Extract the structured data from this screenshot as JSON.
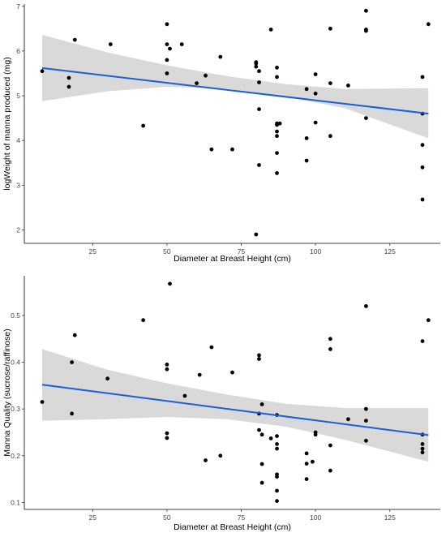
{
  "chart_data": [
    {
      "type": "scatter",
      "title": "",
      "xlabel": "Diameter at Breast Height (cm)",
      "ylabel": "logWeight of manna produced (mg)",
      "xlim": [
        2,
        142
      ],
      "ylim": [
        1.7,
        7.05
      ],
      "x_ticks": [
        25,
        50,
        75,
        100,
        125
      ],
      "y_ticks": [
        2,
        3,
        4,
        5,
        6,
        7
      ],
      "grid": false,
      "colors": {
        "points": "#000000",
        "fit": "#1a5fd6",
        "band": "#d9d9d9"
      },
      "points": [
        {
          "x": 8,
          "y": 5.55
        },
        {
          "x": 17,
          "y": 5.4
        },
        {
          "x": 17,
          "y": 5.2
        },
        {
          "x": 19,
          "y": 6.25
        },
        {
          "x": 31,
          "y": 6.15
        },
        {
          "x": 42,
          "y": 4.33
        },
        {
          "x": 50,
          "y": 6.6
        },
        {
          "x": 50,
          "y": 6.15
        },
        {
          "x": 50,
          "y": 5.8
        },
        {
          "x": 50,
          "y": 5.5
        },
        {
          "x": 51,
          "y": 6.05
        },
        {
          "x": 55,
          "y": 6.15
        },
        {
          "x": 60,
          "y": 5.28
        },
        {
          "x": 63,
          "y": 5.45
        },
        {
          "x": 65,
          "y": 3.8
        },
        {
          "x": 68,
          "y": 5.87
        },
        {
          "x": 72,
          "y": 3.8
        },
        {
          "x": 80,
          "y": 5.75
        },
        {
          "x": 80,
          "y": 5.72
        },
        {
          "x": 80,
          "y": 5.65
        },
        {
          "x": 80,
          "y": 1.9
        },
        {
          "x": 81,
          "y": 5.55
        },
        {
          "x": 81,
          "y": 5.3
        },
        {
          "x": 81,
          "y": 4.7
        },
        {
          "x": 81,
          "y": 3.45
        },
        {
          "x": 85,
          "y": 6.48
        },
        {
          "x": 87,
          "y": 5.63
        },
        {
          "x": 87,
          "y": 5.42
        },
        {
          "x": 87,
          "y": 4.38
        },
        {
          "x": 87,
          "y": 4.35
        },
        {
          "x": 87,
          "y": 4.2
        },
        {
          "x": 87,
          "y": 4.1
        },
        {
          "x": 87,
          "y": 3.72
        },
        {
          "x": 87,
          "y": 3.27
        },
        {
          "x": 88,
          "y": 4.38
        },
        {
          "x": 97,
          "y": 5.15
        },
        {
          "x": 97,
          "y": 4.05
        },
        {
          "x": 97,
          "y": 3.55
        },
        {
          "x": 100,
          "y": 5.48
        },
        {
          "x": 100,
          "y": 5.05
        },
        {
          "x": 100,
          "y": 4.4
        },
        {
          "x": 105,
          "y": 6.5
        },
        {
          "x": 105,
          "y": 5.28
        },
        {
          "x": 105,
          "y": 4.1
        },
        {
          "x": 111,
          "y": 5.23
        },
        {
          "x": 117,
          "y": 6.9
        },
        {
          "x": 117,
          "y": 6.48
        },
        {
          "x": 117,
          "y": 6.45
        },
        {
          "x": 117,
          "y": 4.5
        },
        {
          "x": 136,
          "y": 5.42
        },
        {
          "x": 136,
          "y": 4.6
        },
        {
          "x": 136,
          "y": 3.9
        },
        {
          "x": 136,
          "y": 3.4
        },
        {
          "x": 136,
          "y": 2.68
        },
        {
          "x": 138,
          "y": 6.6
        }
      ],
      "fit": {
        "x": [
          8,
          138
        ],
        "y": [
          5.62,
          4.6
        ]
      },
      "ci_band": {
        "x": [
          8,
          30,
          50,
          70,
          90,
          110,
          138
        ],
        "upper": [
          6.36,
          5.97,
          5.68,
          5.44,
          5.26,
          5.15,
          5.17
        ],
        "lower": [
          4.88,
          5.1,
          5.2,
          5.16,
          4.98,
          4.72,
          4.05
        ]
      }
    },
    {
      "type": "scatter",
      "title": "",
      "xlabel": "Diameter at Breast Height (cm)",
      "ylabel": "Manna Quality (sucrose/raffinose)",
      "xlim": [
        2,
        142
      ],
      "ylim": [
        0.085,
        0.585
      ],
      "x_ticks": [
        25,
        50,
        75,
        100,
        125
      ],
      "y_ticks": [
        0.1,
        0.2,
        0.3,
        0.4,
        0.5
      ],
      "grid": false,
      "colors": {
        "points": "#000000",
        "fit": "#1a5fd6",
        "band": "#d9d9d9"
      },
      "points": [
        {
          "x": 8,
          "y": 0.315
        },
        {
          "x": 18,
          "y": 0.4
        },
        {
          "x": 18,
          "y": 0.29
        },
        {
          "x": 19,
          "y": 0.458
        },
        {
          "x": 30,
          "y": 0.365
        },
        {
          "x": 42,
          "y": 0.49
        },
        {
          "x": 50,
          "y": 0.395
        },
        {
          "x": 50,
          "y": 0.385
        },
        {
          "x": 50,
          "y": 0.248
        },
        {
          "x": 50,
          "y": 0.238
        },
        {
          "x": 51,
          "y": 0.568
        },
        {
          "x": 56,
          "y": 0.328
        },
        {
          "x": 61,
          "y": 0.373
        },
        {
          "x": 63,
          "y": 0.19
        },
        {
          "x": 65,
          "y": 0.432
        },
        {
          "x": 68,
          "y": 0.2
        },
        {
          "x": 72,
          "y": 0.378
        },
        {
          "x": 81,
          "y": 0.415
        },
        {
          "x": 81,
          "y": 0.407
        },
        {
          "x": 81,
          "y": 0.29
        },
        {
          "x": 81,
          "y": 0.255
        },
        {
          "x": 82,
          "y": 0.31
        },
        {
          "x": 82,
          "y": 0.245
        },
        {
          "x": 82,
          "y": 0.182
        },
        {
          "x": 82,
          "y": 0.142
        },
        {
          "x": 85,
          "y": 0.237
        },
        {
          "x": 87,
          "y": 0.287
        },
        {
          "x": 87,
          "y": 0.242
        },
        {
          "x": 87,
          "y": 0.225
        },
        {
          "x": 87,
          "y": 0.215
        },
        {
          "x": 87,
          "y": 0.16
        },
        {
          "x": 87,
          "y": 0.155
        },
        {
          "x": 87,
          "y": 0.125
        },
        {
          "x": 87,
          "y": 0.103
        },
        {
          "x": 97,
          "y": 0.205
        },
        {
          "x": 97,
          "y": 0.183
        },
        {
          "x": 97,
          "y": 0.15
        },
        {
          "x": 99,
          "y": 0.187
        },
        {
          "x": 100,
          "y": 0.25
        },
        {
          "x": 100,
          "y": 0.245
        },
        {
          "x": 105,
          "y": 0.45
        },
        {
          "x": 105,
          "y": 0.428
        },
        {
          "x": 105,
          "y": 0.222
        },
        {
          "x": 105,
          "y": 0.168
        },
        {
          "x": 111,
          "y": 0.278
        },
        {
          "x": 117,
          "y": 0.52
        },
        {
          "x": 117,
          "y": 0.3
        },
        {
          "x": 117,
          "y": 0.275
        },
        {
          "x": 117,
          "y": 0.232
        },
        {
          "x": 136,
          "y": 0.445
        },
        {
          "x": 136,
          "y": 0.245
        },
        {
          "x": 136,
          "y": 0.225
        },
        {
          "x": 136,
          "y": 0.215
        },
        {
          "x": 136,
          "y": 0.207
        },
        {
          "x": 138,
          "y": 0.49
        }
      ],
      "fit": {
        "x": [
          8,
          138
        ],
        "y": [
          0.352,
          0.244
        ]
      },
      "ci_band": {
        "x": [
          8,
          30,
          50,
          70,
          90,
          110,
          138
        ],
        "upper": [
          0.428,
          0.384,
          0.355,
          0.331,
          0.311,
          0.302,
          0.302
        ],
        "lower": [
          0.275,
          0.278,
          0.283,
          0.278,
          0.262,
          0.234,
          0.187
        ]
      }
    }
  ]
}
